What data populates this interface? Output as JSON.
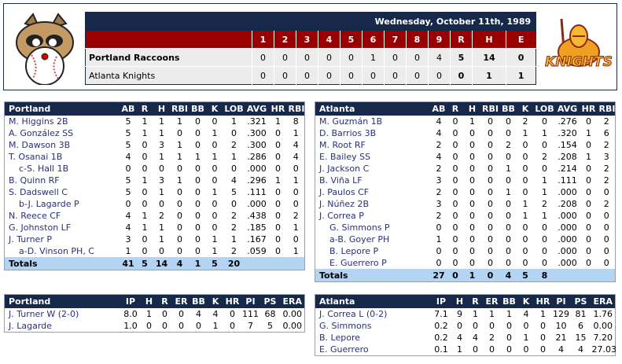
{
  "linescore": {
    "date": "Wednesday, October 11th, 1989",
    "headers": [
      "1",
      "2",
      "3",
      "4",
      "5",
      "6",
      "7",
      "8",
      "9",
      "R",
      "H",
      "E"
    ],
    "teams": [
      {
        "name": "Portland Raccoons",
        "bold": true,
        "innings": [
          "0",
          "0",
          "0",
          "0",
          "0",
          "1",
          "0",
          "0",
          "4"
        ],
        "r": "5",
        "h": "14",
        "e": "0"
      },
      {
        "name": "Atlanta Knights",
        "bold": false,
        "innings": [
          "0",
          "0",
          "0",
          "0",
          "0",
          "0",
          "0",
          "0",
          "0"
        ],
        "r": "0",
        "h": "1",
        "e": "1"
      }
    ],
    "home_logo": "raccoon-baseball-logo",
    "away_logo": "knights-logo",
    "away_logo_text": "KNIGHTS"
  },
  "batting": [
    {
      "team": "Portland",
      "headers": [
        "AB",
        "R",
        "H",
        "RBI",
        "BB",
        "K",
        "LOB",
        "AVG",
        "HR",
        "RBI"
      ],
      "rows": [
        {
          "name": "M. Higgins 2B",
          "sub": false,
          "stats": [
            "5",
            "1",
            "1",
            "1",
            "0",
            "0",
            "1",
            ".321",
            "1",
            "8"
          ]
        },
        {
          "name": "A. González SS",
          "sub": false,
          "stats": [
            "5",
            "1",
            "1",
            "0",
            "0",
            "1",
            "0",
            ".300",
            "0",
            "1"
          ]
        },
        {
          "name": "M. Dawson 3B",
          "sub": false,
          "stats": [
            "5",
            "0",
            "3",
            "1",
            "0",
            "0",
            "2",
            ".300",
            "0",
            "4"
          ]
        },
        {
          "name": "T. Osanai 1B",
          "sub": false,
          "stats": [
            "4",
            "0",
            "1",
            "1",
            "1",
            "1",
            "1",
            ".286",
            "0",
            "4"
          ]
        },
        {
          "name": "c-S. Hall 1B",
          "sub": true,
          "stats": [
            "0",
            "0",
            "0",
            "0",
            "0",
            "0",
            "0",
            ".000",
            "0",
            "0"
          ]
        },
        {
          "name": "B. Quinn RF",
          "sub": false,
          "stats": [
            "5",
            "1",
            "3",
            "1",
            "0",
            "0",
            "4",
            ".296",
            "1",
            "1"
          ]
        },
        {
          "name": "S. Dadswell C",
          "sub": false,
          "stats": [
            "5",
            "0",
            "1",
            "0",
            "0",
            "1",
            "5",
            ".111",
            "0",
            "0"
          ]
        },
        {
          "name": "b-J. Lagarde P",
          "sub": true,
          "stats": [
            "0",
            "0",
            "0",
            "0",
            "0",
            "0",
            "0",
            ".000",
            "0",
            "0"
          ]
        },
        {
          "name": "N. Reece CF",
          "sub": false,
          "stats": [
            "4",
            "1",
            "2",
            "0",
            "0",
            "0",
            "2",
            ".438",
            "0",
            "2"
          ]
        },
        {
          "name": "G. Johnston LF",
          "sub": false,
          "stats": [
            "4",
            "1",
            "1",
            "0",
            "0",
            "0",
            "2",
            ".185",
            "0",
            "1"
          ]
        },
        {
          "name": "J. Turner P",
          "sub": false,
          "stats": [
            "3",
            "0",
            "1",
            "0",
            "0",
            "1",
            "1",
            ".167",
            "0",
            "0"
          ]
        },
        {
          "name": "a-D. Vinson PH, C",
          "sub": true,
          "stats": [
            "1",
            "0",
            "0",
            "0",
            "0",
            "1",
            "2",
            ".059",
            "0",
            "1"
          ]
        }
      ],
      "totals": {
        "label": "Totals",
        "stats": [
          "41",
          "5",
          "14",
          "4",
          "1",
          "5",
          "20",
          "",
          "",
          ""
        ]
      }
    },
    {
      "team": "Atlanta",
      "headers": [
        "AB",
        "R",
        "H",
        "RBI",
        "BB",
        "K",
        "LOB",
        "AVG",
        "HR",
        "RBI"
      ],
      "rows": [
        {
          "name": "M. Guzmán 1B",
          "sub": false,
          "stats": [
            "4",
            "0",
            "1",
            "0",
            "0",
            "2",
            "0",
            ".276",
            "0",
            "2"
          ]
        },
        {
          "name": "D. Barrios 3B",
          "sub": false,
          "stats": [
            "4",
            "0",
            "0",
            "0",
            "0",
            "1",
            "1",
            ".320",
            "1",
            "6"
          ]
        },
        {
          "name": "M. Root RF",
          "sub": false,
          "stats": [
            "2",
            "0",
            "0",
            "0",
            "2",
            "0",
            "0",
            ".154",
            "0",
            "2"
          ]
        },
        {
          "name": "E. Bailey SS",
          "sub": false,
          "stats": [
            "4",
            "0",
            "0",
            "0",
            "0",
            "0",
            "2",
            ".208",
            "1",
            "3"
          ]
        },
        {
          "name": "J. Jackson C",
          "sub": false,
          "stats": [
            "2",
            "0",
            "0",
            "0",
            "1",
            "0",
            "0",
            ".214",
            "0",
            "2"
          ]
        },
        {
          "name": "B. Viña LF",
          "sub": false,
          "stats": [
            "3",
            "0",
            "0",
            "0",
            "0",
            "0",
            "1",
            ".111",
            "0",
            "2"
          ]
        },
        {
          "name": "J. Paulos CF",
          "sub": false,
          "stats": [
            "2",
            "0",
            "0",
            "0",
            "1",
            "0",
            "1",
            ".000",
            "0",
            "0"
          ]
        },
        {
          "name": "J. Núñez 2B",
          "sub": false,
          "stats": [
            "3",
            "0",
            "0",
            "0",
            "0",
            "1",
            "2",
            ".208",
            "0",
            "2"
          ]
        },
        {
          "name": "J. Correa P",
          "sub": false,
          "stats": [
            "2",
            "0",
            "0",
            "0",
            "0",
            "1",
            "1",
            ".000",
            "0",
            "0"
          ]
        },
        {
          "name": "G. Simmons P",
          "sub": true,
          "stats": [
            "0",
            "0",
            "0",
            "0",
            "0",
            "0",
            "0",
            ".000",
            "0",
            "0"
          ]
        },
        {
          "name": "a-B. Goyer PH",
          "sub": true,
          "stats": [
            "1",
            "0",
            "0",
            "0",
            "0",
            "0",
            "0",
            ".000",
            "0",
            "0"
          ]
        },
        {
          "name": "B. Lepore P",
          "sub": true,
          "stats": [
            "0",
            "0",
            "0",
            "0",
            "0",
            "0",
            "0",
            ".000",
            "0",
            "0"
          ]
        },
        {
          "name": "E. Guerrero P",
          "sub": true,
          "stats": [
            "0",
            "0",
            "0",
            "0",
            "0",
            "0",
            "0",
            ".000",
            "0",
            "0"
          ]
        }
      ],
      "totals": {
        "label": "Totals",
        "stats": [
          "27",
          "0",
          "1",
          "0",
          "4",
          "5",
          "8",
          "",
          "",
          ""
        ]
      }
    }
  ],
  "pitching": [
    {
      "team": "Portland",
      "headers": [
        "IP",
        "H",
        "R",
        "ER",
        "BB",
        "K",
        "HR",
        "PI",
        "PS",
        "ERA"
      ],
      "rows": [
        {
          "name": "J. Turner W (2-0)",
          "stats": [
            "8.0",
            "1",
            "0",
            "0",
            "4",
            "4",
            "0",
            "111",
            "68",
            "0.00"
          ]
        },
        {
          "name": "J. Lagarde",
          "stats": [
            "1.0",
            "0",
            "0",
            "0",
            "0",
            "1",
            "0",
            "7",
            "5",
            "0.00"
          ]
        }
      ]
    },
    {
      "team": "Atlanta",
      "headers": [
        "IP",
        "H",
        "R",
        "ER",
        "BB",
        "K",
        "HR",
        "PI",
        "PS",
        "ERA"
      ],
      "rows": [
        {
          "name": "J. Correa L (0-2)",
          "stats": [
            "7.1",
            "9",
            "1",
            "1",
            "1",
            "4",
            "1",
            "129",
            "81",
            "1.76"
          ]
        },
        {
          "name": "G. Simmons",
          "stats": [
            "0.2",
            "0",
            "0",
            "0",
            "0",
            "0",
            "0",
            "10",
            "6",
            "0.00"
          ]
        },
        {
          "name": "B. Lepore",
          "stats": [
            "0.2",
            "4",
            "4",
            "2",
            "0",
            "1",
            "0",
            "21",
            "15",
            "7.20"
          ]
        },
        {
          "name": "E. Guerrero",
          "stats": [
            "0.1",
            "1",
            "0",
            "0",
            "0",
            "0",
            "0",
            "4",
            "4",
            "27.03"
          ]
        }
      ]
    }
  ],
  "colors": {
    "navy": "#16294a",
    "red": "#990000",
    "totals": "#b3d5f3",
    "link": "#2a2f7a"
  }
}
